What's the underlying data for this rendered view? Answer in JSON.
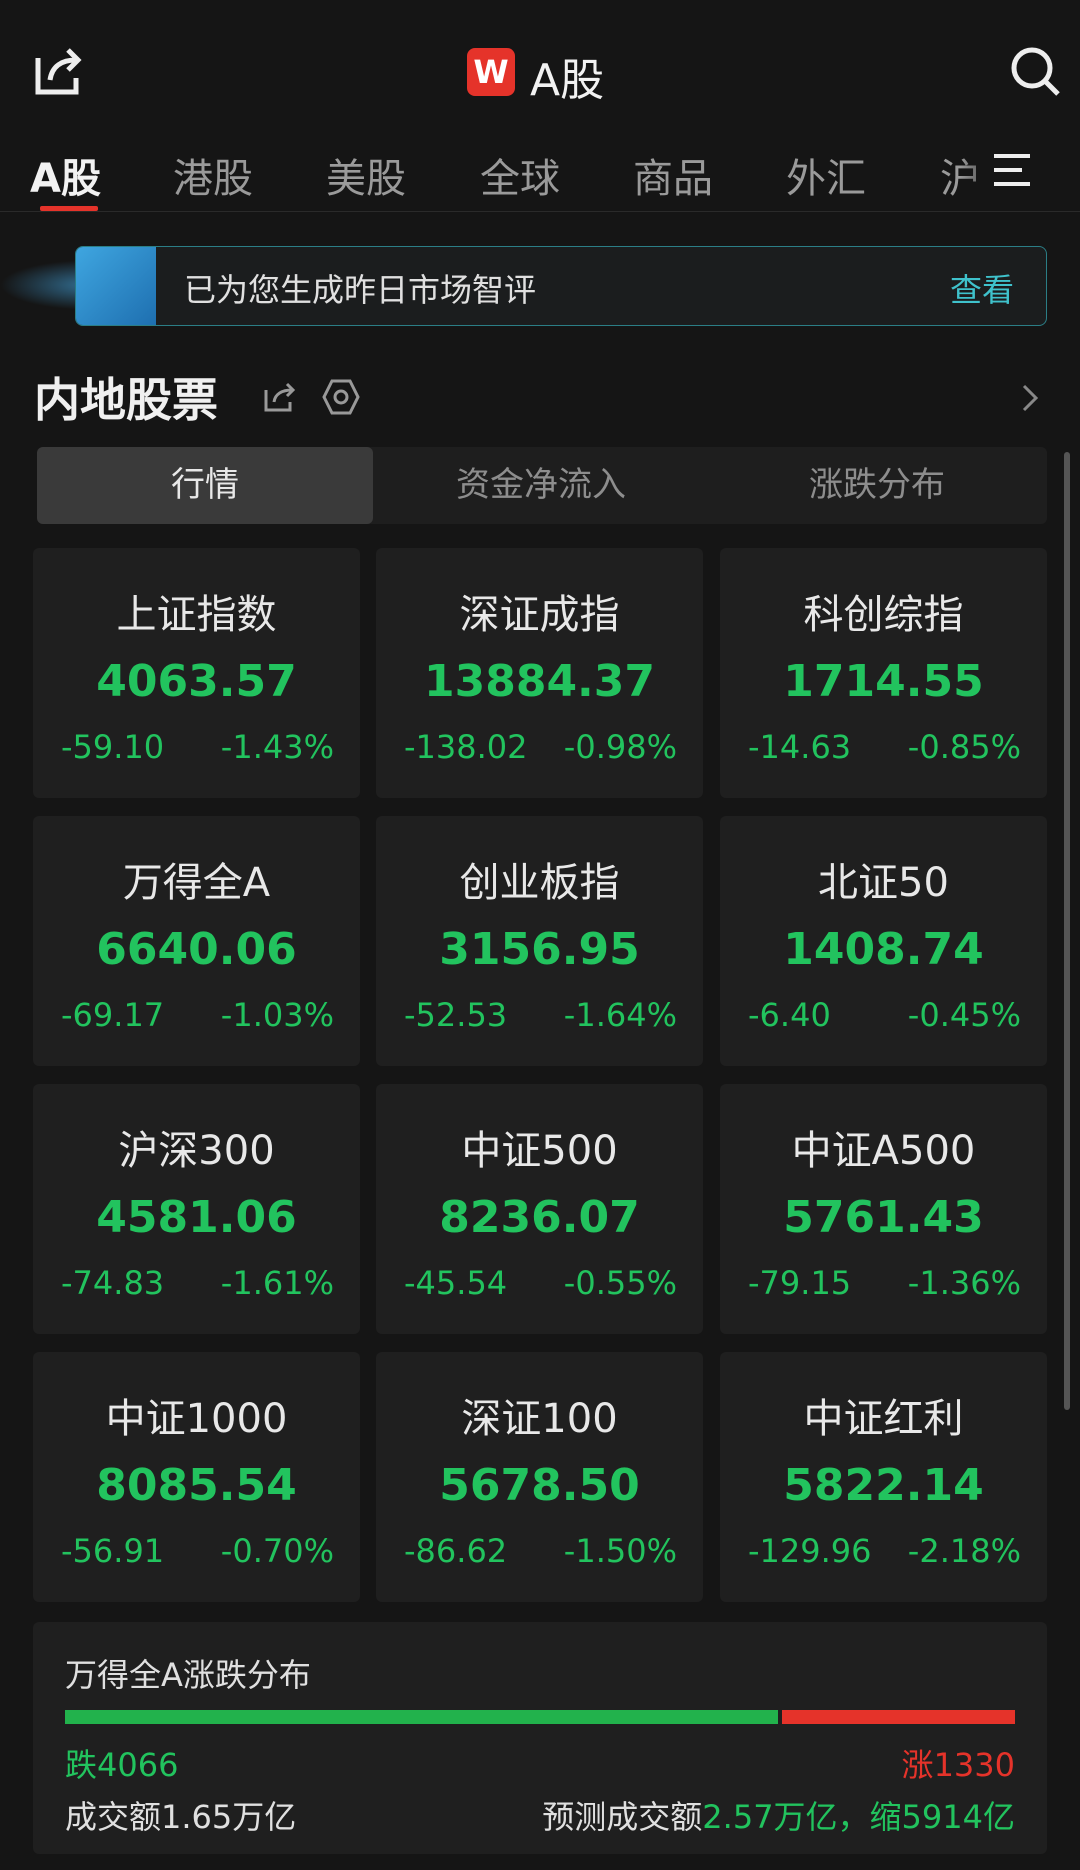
{
  "header": {
    "title": "A股",
    "logo": "W"
  },
  "tabs": [
    "A股",
    "港股",
    "美股",
    "全球",
    "商品",
    "外汇",
    "沪"
  ],
  "banner": {
    "text": "已为您生成昨日市场智评",
    "action": "查看"
  },
  "section": {
    "title": "内地股票"
  },
  "segments": [
    "行情",
    "资金净流入",
    "涨跌分布"
  ],
  "indices": [
    {
      "name": "上证指数",
      "value": "4063.57",
      "change": "-59.10",
      "percent": "-1.43%"
    },
    {
      "name": "深证成指",
      "value": "13884.37",
      "change": "-138.02",
      "percent": "-0.98%"
    },
    {
      "name": "科创综指",
      "value": "1714.55",
      "change": "-14.63",
      "percent": "-0.85%"
    },
    {
      "name": "万得全A",
      "value": "6640.06",
      "change": "-69.17",
      "percent": "-1.03%"
    },
    {
      "name": "创业板指",
      "value": "3156.95",
      "change": "-52.53",
      "percent": "-1.64%"
    },
    {
      "name": "北证50",
      "value": "1408.74",
      "change": "-6.40",
      "percent": "-0.45%"
    },
    {
      "name": "沪深300",
      "value": "4581.06",
      "change": "-74.83",
      "percent": "-1.61%"
    },
    {
      "name": "中证500",
      "value": "8236.07",
      "change": "-45.54",
      "percent": "-0.55%"
    },
    {
      "name": "中证A500",
      "value": "5761.43",
      "change": "-79.15",
      "percent": "-1.36%"
    },
    {
      "name": "中证1000",
      "value": "8085.54",
      "change": "-56.91",
      "percent": "-0.70%"
    },
    {
      "name": "深证100",
      "value": "5678.50",
      "change": "-86.62",
      "percent": "-1.50%"
    },
    {
      "name": "中证红利",
      "value": "5822.14",
      "change": "-129.96",
      "percent": "-2.18%"
    }
  ],
  "distribution": {
    "title": "万得全A涨跌分布",
    "down": {
      "label": "跌",
      "count": 4066
    },
    "up": {
      "label": "涨",
      "count": 1330
    },
    "turnover": "成交额1.65万亿",
    "forecast_label": "预测成交额",
    "forecast_value": "2.57万亿，缩5914亿"
  }
}
